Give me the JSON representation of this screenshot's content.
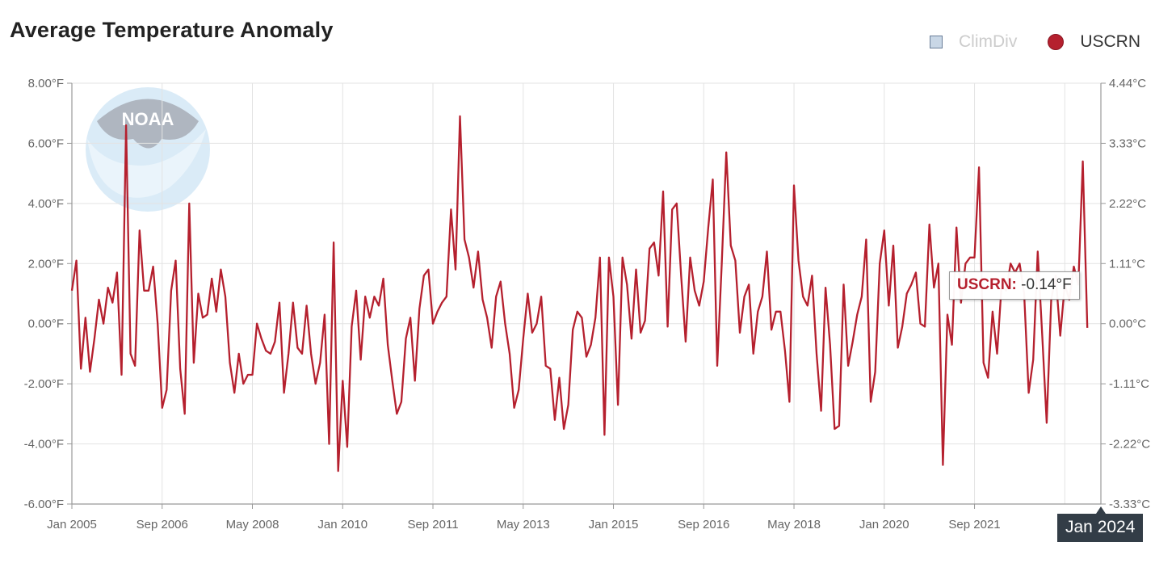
{
  "header": {
    "title": "Average Temperature Anomaly"
  },
  "legend": {
    "items": [
      {
        "label": "ClimDiv",
        "state": "hidden",
        "color": "#c9d7e6"
      },
      {
        "label": "USCRN",
        "state": "visible",
        "color": "#b5202e"
      }
    ]
  },
  "watermark": {
    "text": "NOAA"
  },
  "tooltip": {
    "series": "USCRN:",
    "value": "-0.14°F"
  },
  "cursor": {
    "label": "Jan 2024"
  },
  "chart_data": {
    "type": "line",
    "title": "Average Temperature Anomaly",
    "x_start": "2005-01",
    "x_end": "2024-01",
    "y_left": {
      "min": -6,
      "max": 8,
      "ticks": [
        "8.00°F",
        "6.00°F",
        "4.00°F",
        "2.00°F",
        "0.00°F",
        "-2.00°F",
        "-4.00°F",
        "-6.00°F"
      ]
    },
    "y_right": {
      "min": -3.33,
      "max": 4.44,
      "ticks": [
        "4.44°C",
        "3.33°C",
        "2.22°C",
        "1.11°C",
        "0.00°C",
        "-1.11°C",
        "-2.22°C",
        "-3.33°C"
      ]
    },
    "x_ticks": [
      {
        "label": "Jan 2005",
        "date": "2005-01"
      },
      {
        "label": "Sep 2006",
        "date": "2006-09"
      },
      {
        "label": "May 2008",
        "date": "2008-05"
      },
      {
        "label": "Jan 2010",
        "date": "2010-01"
      },
      {
        "label": "Sep 2011",
        "date": "2011-09"
      },
      {
        "label": "May 2013",
        "date": "2013-05"
      },
      {
        "label": "Jan 2015",
        "date": "2015-01"
      },
      {
        "label": "Sep 2016",
        "date": "2016-09"
      },
      {
        "label": "May 2018",
        "date": "2018-05"
      },
      {
        "label": "Jan 2020",
        "date": "2020-01"
      },
      {
        "label": "Sep 2021",
        "date": "2021-09"
      }
    ],
    "grid": true,
    "series": [
      {
        "name": "USCRN",
        "color": "#b5202e",
        "values": [
          1.1,
          2.1,
          -1.5,
          0.2,
          -1.6,
          -0.5,
          0.8,
          0,
          1.2,
          0.7,
          1.7,
          -1.7,
          6.6,
          -1,
          -1.4,
          3.1,
          1.1,
          1.1,
          1.9,
          0,
          -2.8,
          -2.2,
          1.1,
          2.1,
          -1.5,
          -3,
          4,
          -1.3,
          1,
          0.2,
          0.3,
          1.5,
          0.4,
          1.8,
          0.9,
          -1.3,
          -2.3,
          -1,
          -2,
          -1.7,
          -1.7,
          0,
          -0.5,
          -0.9,
          -1,
          -0.6,
          0.7,
          -2.3,
          -1,
          0.7,
          -0.8,
          -1,
          0.6,
          -1,
          -2,
          -1.3,
          0.3,
          -4,
          2.7,
          -4.9,
          -1.9,
          -4.1,
          -0.1,
          1.1,
          -1.2,
          0.9,
          0.2,
          0.9,
          0.6,
          1.5,
          -0.7,
          -1.9,
          -3,
          -2.6,
          -0.5,
          0.2,
          -1.9,
          0.5,
          1.6,
          1.8,
          0,
          0.4,
          0.7,
          0.9,
          3.8,
          1.8,
          6.9,
          2.8,
          2.2,
          1.2,
          2.4,
          0.8,
          0.2,
          -0.8,
          0.9,
          1.4,
          0,
          -1,
          -2.8,
          -2.2,
          -0.5,
          1,
          -0.3,
          0,
          0.9,
          -1.4,
          -1.5,
          -3.2,
          -1.8,
          -3.5,
          -2.7,
          -0.2,
          0.4,
          0.2,
          -1.1,
          -0.7,
          0.2,
          2.2,
          -3.7,
          2.2,
          0.9,
          -2.7,
          2.2,
          1.3,
          -0.5,
          1.8,
          -0.3,
          0.1,
          2.5,
          2.7,
          1.6,
          4.4,
          -0.1,
          3.8,
          4,
          1.6,
          -0.6,
          2.2,
          1.1,
          0.6,
          1.4,
          3.2,
          4.8,
          -1.4,
          2,
          5.7,
          2.6,
          2.1,
          -0.3,
          0.9,
          1.3,
          -1,
          0.4,
          0.9,
          2.4,
          -0.2,
          0.4,
          0.4,
          -0.9,
          -2.6,
          4.6,
          2.1,
          0.9,
          0.6,
          1.6,
          -1,
          -2.9,
          1.2,
          -0.7,
          -3.5,
          -3.4,
          1.3,
          -1.4,
          -0.6,
          0.3,
          0.9,
          2.8,
          -2.6,
          -1.6,
          2,
          3.1,
          0.6,
          2.6,
          -0.8,
          -0.1,
          1,
          1.3,
          1.7,
          0,
          -0.1,
          3.3,
          1.2,
          2,
          -4.7,
          0.3,
          -0.7,
          3.2,
          0.7,
          2,
          2.2,
          2.2,
          5.2,
          -1.3,
          -1.8,
          0.4,
          -1,
          1.3,
          1.1,
          2,
          1.7,
          2,
          1,
          -2.3,
          -1.2,
          2.4,
          -0.4,
          -3.3,
          0.8,
          1.6,
          -0.4,
          1.3,
          0.8,
          1.9,
          1.3,
          5.4,
          -0.14
        ]
      }
    ]
  }
}
